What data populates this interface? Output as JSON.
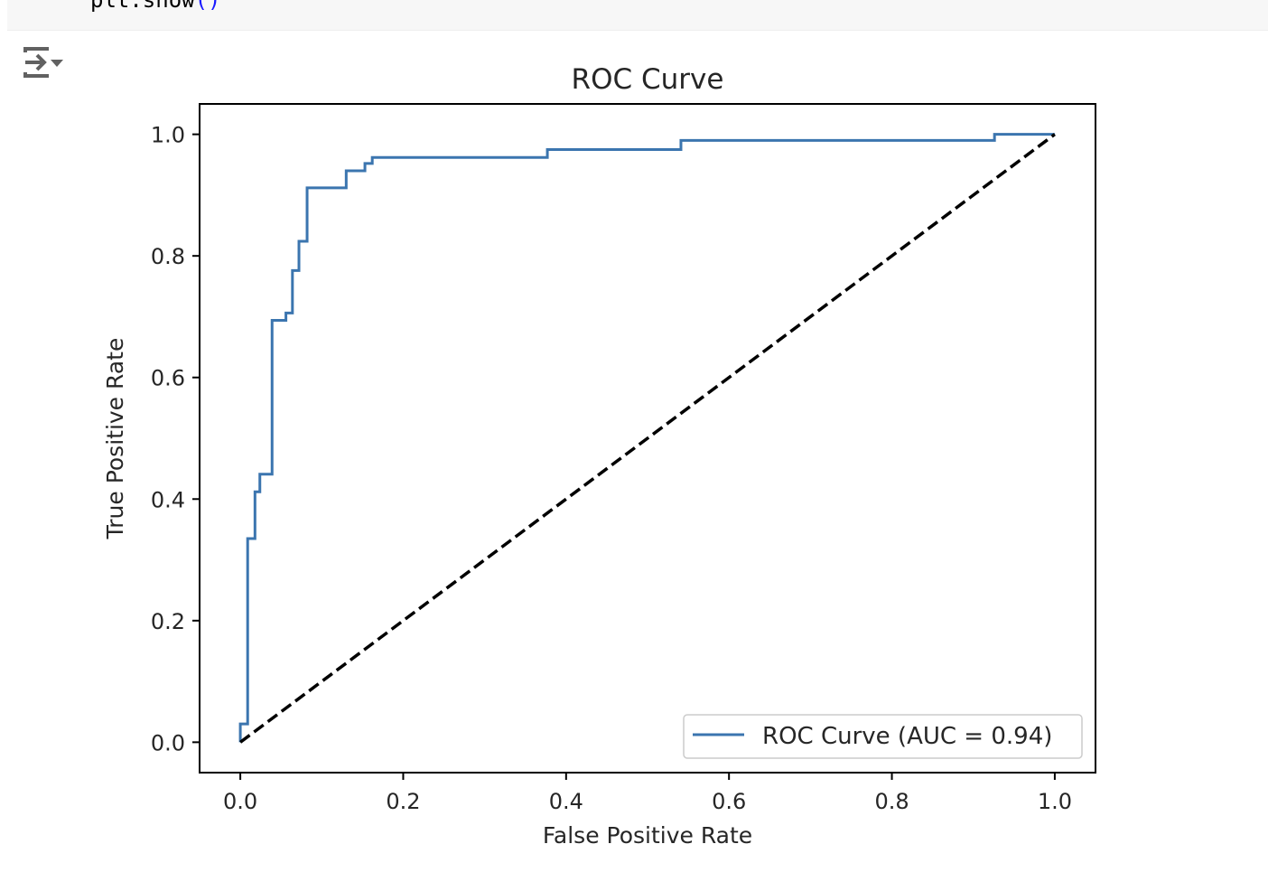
{
  "code_cell": {
    "code_text": "plt.show",
    "paren_text": "()"
  },
  "output_toggle": {
    "icon": "output-collapse-icon"
  },
  "colors": {
    "roc_line": "#3b75af",
    "diagonal": "#000000",
    "axes": "#000000"
  },
  "chart_data": {
    "type": "line",
    "title": "ROC Curve",
    "xlabel": "False Positive Rate",
    "ylabel": "True Positive Rate",
    "xlim": [
      -0.05,
      1.05
    ],
    "ylim": [
      -0.05,
      1.05
    ],
    "xticks": [
      0.0,
      0.2,
      0.4,
      0.6,
      0.8,
      1.0
    ],
    "yticks": [
      0.0,
      0.2,
      0.4,
      0.6,
      0.8,
      1.0
    ],
    "xtick_labels": [
      "0.0",
      "0.2",
      "0.4",
      "0.6",
      "0.8",
      "1.0"
    ],
    "ytick_labels": [
      "0.0",
      "0.2",
      "0.4",
      "0.6",
      "0.8",
      "1.0"
    ],
    "grid": false,
    "legend_position": "lower-right",
    "series": [
      {
        "name": "ROC Curve (AUC = 0.94)",
        "style": "solid",
        "x": [
          0.0,
          0.0,
          0.009,
          0.009,
          0.018,
          0.018,
          0.024,
          0.024,
          0.039,
          0.039,
          0.056,
          0.056,
          0.064,
          0.064,
          0.072,
          0.072,
          0.082,
          0.082,
          0.13,
          0.13,
          0.153,
          0.153,
          0.162,
          0.162,
          0.377,
          0.377,
          0.541,
          0.541,
          0.926,
          0.926,
          1.0
        ],
        "y": [
          0.0,
          0.03,
          0.03,
          0.335,
          0.335,
          0.412,
          0.412,
          0.441,
          0.441,
          0.694,
          0.694,
          0.706,
          0.706,
          0.776,
          0.776,
          0.824,
          0.824,
          0.912,
          0.912,
          0.94,
          0.94,
          0.952,
          0.952,
          0.962,
          0.962,
          0.975,
          0.975,
          0.99,
          0.99,
          1.0,
          1.0
        ]
      },
      {
        "name": "",
        "style": "dashed",
        "x": [
          0.0,
          1.0
        ],
        "y": [
          0.0,
          1.0
        ]
      }
    ],
    "legend_entries": [
      "ROC Curve (AUC = 0.94)"
    ]
  }
}
